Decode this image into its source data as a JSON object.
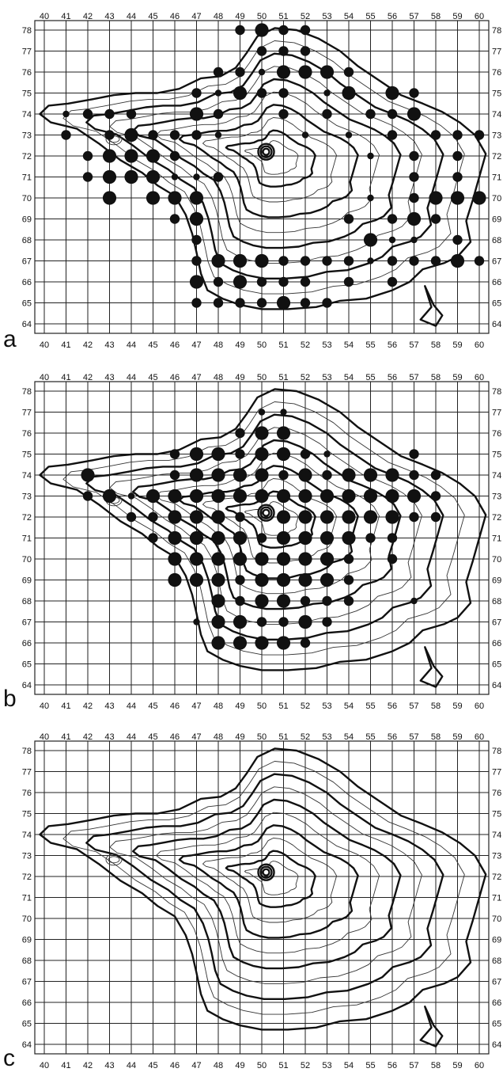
{
  "x_ticks": [
    "40",
    "41",
    "42",
    "43",
    "44",
    "45",
    "46",
    "47",
    "48",
    "49",
    "50",
    "51",
    "52",
    "53",
    "54",
    "55",
    "56",
    "57",
    "58",
    "59",
    "60"
  ],
  "y_ticks": [
    "78",
    "77",
    "76",
    "75",
    "74",
    "73",
    "72",
    "71",
    "70",
    "69",
    "68",
    "67",
    "66",
    "65",
    "64"
  ],
  "panels": [
    {
      "letter": "a",
      "dots": [
        [
          49,
          78,
          "m"
        ],
        [
          50,
          78,
          "l"
        ],
        [
          51,
          78,
          "m"
        ],
        [
          52,
          78,
          "m"
        ],
        [
          50,
          77,
          "m"
        ],
        [
          51,
          77,
          "m"
        ],
        [
          52,
          77,
          "m"
        ],
        [
          48,
          76,
          "m"
        ],
        [
          49,
          76,
          "m"
        ],
        [
          50,
          76,
          "s"
        ],
        [
          51,
          76,
          "l"
        ],
        [
          52,
          76,
          "l"
        ],
        [
          53,
          76,
          "l"
        ],
        [
          54,
          76,
          "m"
        ],
        [
          47,
          75,
          "m"
        ],
        [
          48,
          75,
          "s"
        ],
        [
          49,
          75,
          "l"
        ],
        [
          50,
          75,
          "m"
        ],
        [
          51,
          75,
          "m"
        ],
        [
          53,
          75,
          "s"
        ],
        [
          54,
          75,
          "l"
        ],
        [
          56,
          75,
          "l"
        ],
        [
          57,
          75,
          "m"
        ],
        [
          41,
          74,
          "s"
        ],
        [
          42,
          74,
          "m"
        ],
        [
          43,
          74,
          "m"
        ],
        [
          44,
          74,
          "m"
        ],
        [
          47,
          74,
          "l"
        ],
        [
          48,
          74,
          "m"
        ],
        [
          51,
          74,
          "m"
        ],
        [
          53,
          74,
          "m"
        ],
        [
          55,
          74,
          "m"
        ],
        [
          56,
          74,
          "m"
        ],
        [
          57,
          74,
          "l"
        ],
        [
          41,
          73,
          "m"
        ],
        [
          43,
          73,
          "m"
        ],
        [
          44,
          73,
          "l"
        ],
        [
          45,
          73,
          "m"
        ],
        [
          46,
          73,
          "m"
        ],
        [
          47,
          73,
          "m"
        ],
        [
          48,
          73,
          "s"
        ],
        [
          52,
          73,
          "s"
        ],
        [
          54,
          73,
          "s"
        ],
        [
          56,
          73,
          "m"
        ],
        [
          58,
          73,
          "m"
        ],
        [
          59,
          73,
          "m"
        ],
        [
          60,
          73,
          "m"
        ],
        [
          42,
          72,
          "m"
        ],
        [
          43,
          72,
          "l"
        ],
        [
          44,
          72,
          "l"
        ],
        [
          45,
          72,
          "l"
        ],
        [
          46,
          72,
          "m"
        ],
        [
          55,
          72,
          "s"
        ],
        [
          57,
          72,
          "m"
        ],
        [
          59,
          72,
          "m"
        ],
        [
          42,
          71,
          "m"
        ],
        [
          43,
          71,
          "l"
        ],
        [
          44,
          71,
          "l"
        ],
        [
          45,
          71,
          "l"
        ],
        [
          46,
          71,
          "s"
        ],
        [
          47,
          71,
          "s"
        ],
        [
          48,
          71,
          "m"
        ],
        [
          57,
          71,
          "m"
        ],
        [
          59,
          71,
          "m"
        ],
        [
          43,
          70,
          "l"
        ],
        [
          45,
          70,
          "l"
        ],
        [
          46,
          70,
          "l"
        ],
        [
          47,
          70,
          "l"
        ],
        [
          55,
          70,
          "s"
        ],
        [
          57,
          70,
          "m"
        ],
        [
          58,
          70,
          "l"
        ],
        [
          59,
          70,
          "l"
        ],
        [
          60,
          70,
          "l"
        ],
        [
          46,
          69,
          "m"
        ],
        [
          47,
          69,
          "l"
        ],
        [
          54,
          69,
          "m"
        ],
        [
          56,
          69,
          "m"
        ],
        [
          57,
          69,
          "l"
        ],
        [
          58,
          69,
          "m"
        ],
        [
          47,
          68,
          "m"
        ],
        [
          55,
          68,
          "l"
        ],
        [
          56,
          68,
          "s"
        ],
        [
          57,
          68,
          "s"
        ],
        [
          59,
          68,
          "m"
        ],
        [
          47,
          67,
          "m"
        ],
        [
          48,
          67,
          "l"
        ],
        [
          49,
          67,
          "l"
        ],
        [
          50,
          67,
          "l"
        ],
        [
          51,
          67,
          "m"
        ],
        [
          52,
          67,
          "m"
        ],
        [
          53,
          67,
          "m"
        ],
        [
          54,
          67,
          "m"
        ],
        [
          55,
          67,
          "s"
        ],
        [
          56,
          67,
          "m"
        ],
        [
          57,
          67,
          "m"
        ],
        [
          58,
          67,
          "m"
        ],
        [
          59,
          67,
          "l"
        ],
        [
          60,
          67,
          "m"
        ],
        [
          47,
          66,
          "l"
        ],
        [
          48,
          66,
          "m"
        ],
        [
          49,
          66,
          "l"
        ],
        [
          50,
          66,
          "m"
        ],
        [
          51,
          66,
          "m"
        ],
        [
          52,
          66,
          "m"
        ],
        [
          54,
          66,
          "m"
        ],
        [
          56,
          66,
          "m"
        ],
        [
          47,
          65,
          "m"
        ],
        [
          48,
          65,
          "m"
        ],
        [
          49,
          65,
          "m"
        ],
        [
          50,
          65,
          "m"
        ],
        [
          51,
          65,
          "l"
        ],
        [
          52,
          65,
          "m"
        ],
        [
          53,
          65,
          "m"
        ]
      ]
    },
    {
      "letter": "b",
      "dots": [
        [
          50,
          77,
          "s"
        ],
        [
          51,
          77,
          "s"
        ],
        [
          49,
          76,
          "m"
        ],
        [
          50,
          76,
          "l"
        ],
        [
          51,
          76,
          "l"
        ],
        [
          46,
          75,
          "m"
        ],
        [
          47,
          75,
          "l"
        ],
        [
          48,
          75,
          "l"
        ],
        [
          49,
          75,
          "m"
        ],
        [
          50,
          75,
          "l"
        ],
        [
          51,
          75,
          "l"
        ],
        [
          52,
          75,
          "m"
        ],
        [
          53,
          75,
          "s"
        ],
        [
          57,
          75,
          "m"
        ],
        [
          42,
          74,
          "l"
        ],
        [
          46,
          74,
          "m"
        ],
        [
          47,
          74,
          "l"
        ],
        [
          48,
          74,
          "l"
        ],
        [
          49,
          74,
          "l"
        ],
        [
          50,
          74,
          "l"
        ],
        [
          51,
          74,
          "m"
        ],
        [
          52,
          74,
          "l"
        ],
        [
          53,
          74,
          "m"
        ],
        [
          54,
          74,
          "l"
        ],
        [
          55,
          74,
          "l"
        ],
        [
          56,
          74,
          "l"
        ],
        [
          57,
          74,
          "m"
        ],
        [
          58,
          74,
          "m"
        ],
        [
          42,
          73,
          "m"
        ],
        [
          43,
          73,
          "l"
        ],
        [
          44,
          73,
          "s"
        ],
        [
          45,
          73,
          "l"
        ],
        [
          46,
          73,
          "l"
        ],
        [
          47,
          73,
          "l"
        ],
        [
          48,
          73,
          "l"
        ],
        [
          49,
          73,
          "l"
        ],
        [
          50,
          73,
          "l"
        ],
        [
          51,
          73,
          "l"
        ],
        [
          52,
          73,
          "l"
        ],
        [
          53,
          73,
          "l"
        ],
        [
          54,
          73,
          "l"
        ],
        [
          55,
          73,
          "l"
        ],
        [
          56,
          73,
          "l"
        ],
        [
          57,
          73,
          "l"
        ],
        [
          58,
          73,
          "m"
        ],
        [
          44,
          72,
          "m"
        ],
        [
          45,
          72,
          "m"
        ],
        [
          46,
          72,
          "l"
        ],
        [
          47,
          72,
          "l"
        ],
        [
          48,
          72,
          "l"
        ],
        [
          49,
          72,
          "m"
        ],
        [
          51,
          72,
          "l"
        ],
        [
          52,
          72,
          "l"
        ],
        [
          53,
          72,
          "l"
        ],
        [
          54,
          72,
          "l"
        ],
        [
          55,
          72,
          "l"
        ],
        [
          56,
          72,
          "l"
        ],
        [
          57,
          72,
          "m"
        ],
        [
          58,
          72,
          "m"
        ],
        [
          45,
          71,
          "m"
        ],
        [
          46,
          71,
          "l"
        ],
        [
          47,
          71,
          "l"
        ],
        [
          48,
          71,
          "l"
        ],
        [
          49,
          71,
          "l"
        ],
        [
          50,
          71,
          "m"
        ],
        [
          51,
          71,
          "l"
        ],
        [
          52,
          71,
          "l"
        ],
        [
          53,
          71,
          "l"
        ],
        [
          54,
          71,
          "l"
        ],
        [
          55,
          71,
          "m"
        ],
        [
          56,
          71,
          "m"
        ],
        [
          46,
          70,
          "l"
        ],
        [
          47,
          70,
          "l"
        ],
        [
          48,
          70,
          "l"
        ],
        [
          49,
          70,
          "l"
        ],
        [
          50,
          70,
          "l"
        ],
        [
          51,
          70,
          "l"
        ],
        [
          52,
          70,
          "l"
        ],
        [
          53,
          70,
          "l"
        ],
        [
          54,
          70,
          "m"
        ],
        [
          56,
          70,
          "m"
        ],
        [
          46,
          69,
          "l"
        ],
        [
          47,
          69,
          "l"
        ],
        [
          48,
          69,
          "l"
        ],
        [
          49,
          69,
          "m"
        ],
        [
          50,
          69,
          "l"
        ],
        [
          51,
          69,
          "l"
        ],
        [
          52,
          69,
          "l"
        ],
        [
          53,
          69,
          "l"
        ],
        [
          54,
          69,
          "m"
        ],
        [
          48,
          68,
          "l"
        ],
        [
          49,
          68,
          "m"
        ],
        [
          50,
          68,
          "l"
        ],
        [
          51,
          68,
          "l"
        ],
        [
          52,
          68,
          "m"
        ],
        [
          53,
          68,
          "m"
        ],
        [
          54,
          68,
          "m"
        ],
        [
          57,
          68,
          "s"
        ],
        [
          47,
          67,
          "s"
        ],
        [
          48,
          67,
          "l"
        ],
        [
          49,
          67,
          "l"
        ],
        [
          50,
          67,
          "m"
        ],
        [
          51,
          67,
          "m"
        ],
        [
          52,
          67,
          "l"
        ],
        [
          53,
          67,
          "m"
        ],
        [
          48,
          66,
          "l"
        ],
        [
          49,
          66,
          "l"
        ],
        [
          50,
          66,
          "l"
        ],
        [
          51,
          66,
          "l"
        ],
        [
          52,
          66,
          "m"
        ]
      ]
    },
    {
      "letter": "c",
      "dots": []
    }
  ]
}
